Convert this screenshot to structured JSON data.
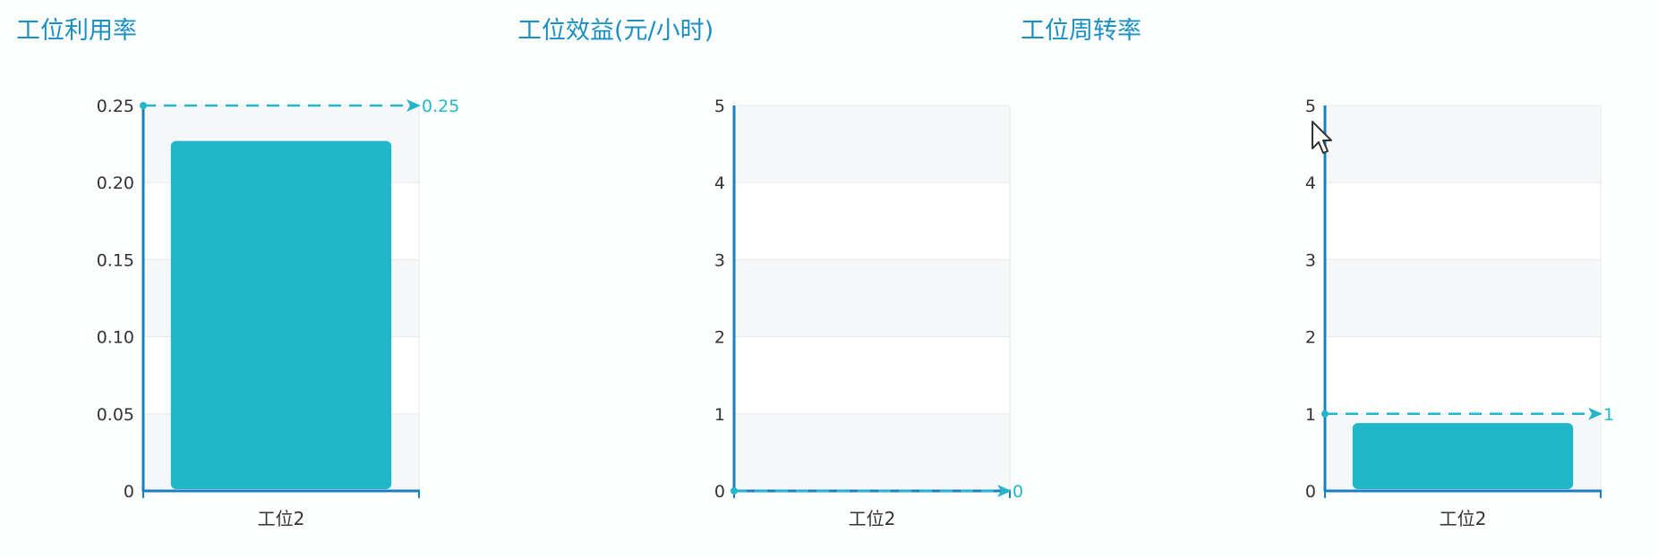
{
  "colors": {
    "title": "#1a8fc2",
    "axis": "#1a7fc0",
    "bar": "#22b6c9",
    "markline": "#22b6c9",
    "band_light": "#f6f7f8",
    "grid": "#e8e8e8",
    "tick_text": "#333333"
  },
  "charts": [
    {
      "title": "工位利用率"
    },
    {
      "title": "工位效益(元/小时)"
    },
    {
      "title": "工位周转率"
    }
  ],
  "chart_data": [
    {
      "type": "bar",
      "title": "工位利用率",
      "categories": [
        "工位2"
      ],
      "values": [
        0.227
      ],
      "ylim": [
        0,
        0.25
      ],
      "yticks": [
        0,
        0.05,
        0.1,
        0.15,
        0.2,
        0.25
      ],
      "ytick_labels": [
        "0",
        "0.05",
        "0.10",
        "0.15",
        "0.20",
        "0.25"
      ],
      "markline": {
        "value": 0.25,
        "label": "0.25"
      },
      "grid": true
    },
    {
      "type": "bar",
      "title": "工位效益(元/小时)",
      "categories": [
        "工位2"
      ],
      "values": [
        0
      ],
      "ylim": [
        0,
        5
      ],
      "yticks": [
        0,
        1,
        2,
        3,
        4,
        5
      ],
      "ytick_labels": [
        "0",
        "1",
        "2",
        "3",
        "4",
        "5"
      ],
      "markline": {
        "value": 0,
        "label": "0"
      },
      "grid": true
    },
    {
      "type": "bar",
      "title": "工位周转率",
      "categories": [
        "工位2"
      ],
      "values": [
        0.88
      ],
      "ylim": [
        0,
        5
      ],
      "yticks": [
        0,
        1,
        2,
        3,
        4,
        5
      ],
      "ytick_labels": [
        "0",
        "1",
        "2",
        "3",
        "4",
        "5"
      ],
      "markline": {
        "value": 1,
        "label": "1"
      },
      "grid": true
    }
  ]
}
